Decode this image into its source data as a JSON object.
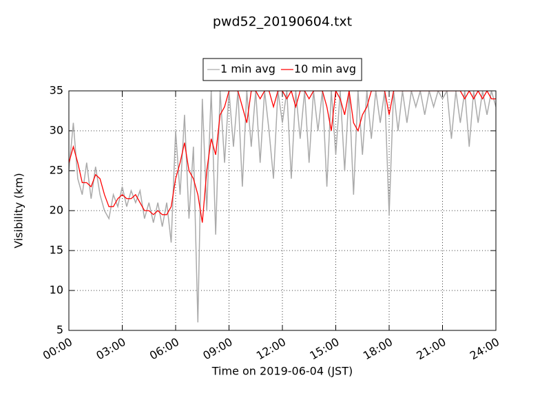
{
  "chart_data": {
    "type": "line",
    "title": "pwd52_20190604.txt",
    "xlabel": "Time on 2019-06-04 (JST)",
    "ylabel": "Visibility (km)",
    "x": [
      0,
      0.25,
      0.5,
      0.75,
      1,
      1.25,
      1.5,
      1.75,
      2,
      2.25,
      2.5,
      2.75,
      3,
      3.25,
      3.5,
      3.75,
      4,
      4.25,
      4.5,
      4.75,
      5,
      5.25,
      5.5,
      5.75,
      6,
      6.25,
      6.5,
      6.75,
      7,
      7.25,
      7.5,
      7.75,
      8,
      8.25,
      8.5,
      8.75,
      9,
      9.25,
      9.5,
      9.75,
      10,
      10.25,
      10.5,
      10.75,
      11,
      11.25,
      11.5,
      11.75,
      12,
      12.25,
      12.5,
      12.75,
      13,
      13.25,
      13.5,
      13.75,
      14,
      14.25,
      14.5,
      14.75,
      15,
      15.25,
      15.5,
      15.75,
      16,
      16.25,
      16.5,
      16.75,
      17,
      17.25,
      17.5,
      17.75,
      18,
      18.25,
      18.5,
      18.75,
      19,
      19.25,
      19.5,
      19.75,
      20,
      20.25,
      20.5,
      20.75,
      21,
      21.25,
      21.5,
      21.75,
      22,
      22.25,
      22.5,
      22.75,
      23,
      23.25,
      23.5,
      23.75,
      24
    ],
    "series": [
      {
        "name": "1 min avg",
        "color": "#aaaaaa",
        "values": [
          25,
          31,
          24,
          22,
          26,
          21.5,
          25.5,
          22,
          20,
          19,
          22,
          20.5,
          23,
          20.5,
          22.5,
          21,
          22.5,
          19,
          21,
          18.5,
          21,
          18,
          21,
          16,
          30,
          22,
          32,
          19,
          28,
          6,
          34,
          20,
          35,
          17,
          35,
          26,
          35,
          28,
          35,
          23,
          35,
          28,
          35,
          26,
          35,
          30,
          24,
          35,
          31,
          35,
          24,
          35,
          29,
          35,
          26,
          35,
          30,
          35,
          23,
          35,
          27,
          35,
          25,
          35,
          22,
          35,
          27,
          35,
          29,
          35,
          31,
          35,
          19.5,
          35,
          30,
          35,
          31,
          35,
          33,
          35,
          32,
          35,
          33,
          35,
          34,
          35,
          29,
          35,
          31,
          35,
          28,
          35,
          31,
          35,
          32,
          35,
          33
        ]
      },
      {
        "name": "10 min avg",
        "color": "#ff0000",
        "values": [
          26,
          28,
          26,
          23.5,
          23.5,
          23,
          24.5,
          24,
          22,
          20.5,
          20.5,
          21.5,
          22,
          21.5,
          21.5,
          22,
          21,
          20,
          20,
          19.5,
          20,
          19.5,
          19.5,
          20.5,
          24,
          26,
          28.5,
          25,
          24,
          22,
          18.5,
          25,
          29,
          27,
          32,
          33,
          35,
          35,
          35,
          33,
          31,
          35,
          35,
          34,
          35,
          35,
          33,
          35,
          35,
          34,
          35,
          33,
          35,
          35,
          34,
          35,
          35,
          35,
          33,
          30,
          35,
          34,
          32,
          35,
          31,
          30,
          32,
          33,
          35,
          35,
          35,
          35,
          32,
          35,
          35,
          35,
          35,
          35,
          35,
          35,
          35,
          35,
          35,
          35,
          35,
          35,
          35,
          35,
          35,
          34,
          35,
          34,
          35,
          34,
          35,
          34,
          34
        ]
      }
    ],
    "xlim": [
      0,
      24
    ],
    "xticks": [
      {
        "value": 0,
        "label": "00:00"
      },
      {
        "value": 3,
        "label": "03:00"
      },
      {
        "value": 6,
        "label": "06:00"
      },
      {
        "value": 9,
        "label": "09:00"
      },
      {
        "value": 12,
        "label": "12:00"
      },
      {
        "value": 15,
        "label": "15:00"
      },
      {
        "value": 18,
        "label": "18:00"
      },
      {
        "value": 21,
        "label": "21:00"
      },
      {
        "value": 24,
        "label": "24:00"
      }
    ],
    "ylim": [
      5,
      35
    ],
    "yticks": [
      5,
      10,
      15,
      20,
      25,
      30,
      35
    ],
    "grid": true,
    "legend": "top"
  }
}
